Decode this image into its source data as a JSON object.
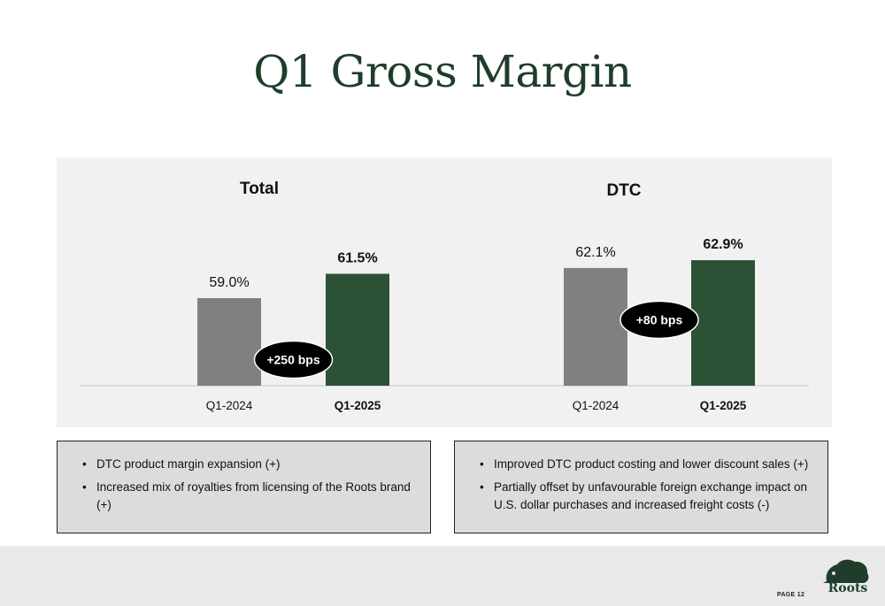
{
  "page": {
    "title": "Q1 Gross Margin",
    "page_number": "PAGE 12",
    "logo_text": "Roots"
  },
  "colors": {
    "title": "#1f3d2a",
    "bar_prior": "#808080",
    "bar_current": "#2b5235",
    "badge": "#000000",
    "panel": "#f1f1f1"
  },
  "chart_data": [
    {
      "type": "bar",
      "title": "Total",
      "categories": [
        "Q1-2024",
        "Q1-2025"
      ],
      "values": [
        59.0,
        61.5
      ],
      "value_labels": [
        "59.0%",
        "61.5%"
      ],
      "ylim": [
        50,
        64
      ],
      "badge": "+250 bps"
    },
    {
      "type": "bar",
      "title": "DTC",
      "categories": [
        "Q1-2024",
        "Q1-2025"
      ],
      "values": [
        62.1,
        62.9
      ],
      "value_labels": [
        "62.1%",
        "62.9%"
      ],
      "ylim": [
        50,
        64
      ],
      "badge": "+80 bps"
    }
  ],
  "notes": {
    "left": [
      "DTC product margin expansion (+)",
      "Increased mix of royalties from licensing of the Roots brand (+)"
    ],
    "right": [
      "Improved DTC product costing and lower discount sales (+)",
      "Partially offset by unfavourable foreign exchange impact on U.S. dollar purchases and increased freight costs (-)"
    ]
  }
}
